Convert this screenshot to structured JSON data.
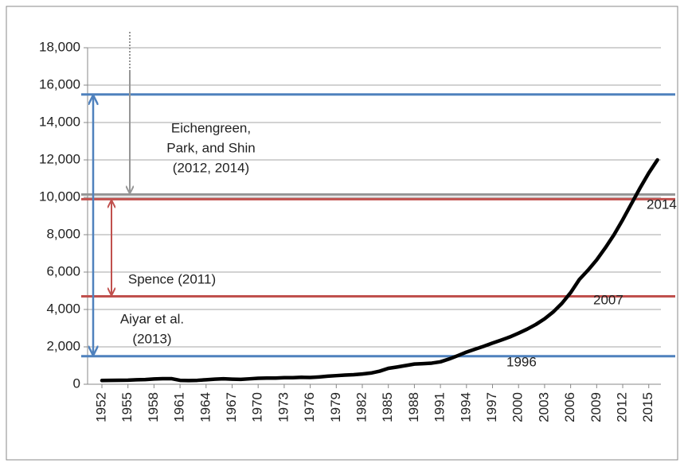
{
  "chart_data": {
    "type": "line",
    "x": [
      1952,
      1953,
      1954,
      1955,
      1956,
      1957,
      1958,
      1959,
      1960,
      1961,
      1962,
      1963,
      1964,
      1965,
      1966,
      1967,
      1968,
      1969,
      1970,
      1971,
      1972,
      1973,
      1974,
      1975,
      1976,
      1977,
      1978,
      1979,
      1980,
      1981,
      1982,
      1983,
      1984,
      1985,
      1986,
      1987,
      1988,
      1989,
      1990,
      1991,
      1992,
      1993,
      1994,
      1995,
      1996,
      1997,
      1998,
      1999,
      2000,
      2001,
      2002,
      2003,
      2004,
      2005,
      2006,
      2007,
      2008,
      2009,
      2010,
      2011,
      2012,
      2013,
      2014,
      2015,
      2016
    ],
    "series": [
      {
        "color": "#000000",
        "values": [
          200,
          210,
          215,
          220,
          240,
          250,
          280,
          300,
          300,
          210,
          195,
          210,
          240,
          270,
          290,
          270,
          260,
          290,
          320,
          330,
          330,
          350,
          350,
          370,
          360,
          390,
          430,
          460,
          490,
          510,
          550,
          600,
          700,
          850,
          920,
          1000,
          1080,
          1100,
          1130,
          1200,
          1350,
          1530,
          1720,
          1880,
          2030,
          2200,
          2360,
          2530,
          2730,
          2950,
          3200,
          3500,
          3870,
          4330,
          4900,
          5600,
          6100,
          6650,
          7300,
          8000,
          8800,
          9650,
          10500,
          11300,
          12000
        ]
      }
    ],
    "xlim": [
      1950.35,
      2016.4
    ],
    "xticks": [
      1952,
      1955,
      1958,
      1961,
      1964,
      1967,
      1970,
      1973,
      1976,
      1979,
      1982,
      1985,
      1988,
      1991,
      1994,
      1997,
      2000,
      2003,
      2006,
      2009,
      2012,
      2015
    ],
    "ylim": [
      0,
      18000
    ],
    "yticks": [
      0,
      {
        "value": 2000,
        "label": "2,000"
      },
      {
        "value": 4000,
        "label": "4,000"
      },
      {
        "value": 6000,
        "label": "6,000"
      },
      {
        "value": 8000,
        "label": "8,000"
      },
      {
        "value": 10000,
        "label": "10,000"
      },
      {
        "value": 12000,
        "label": "12,000"
      },
      {
        "value": 14000,
        "label": "14,000"
      },
      {
        "value": 16000,
        "label": "16,000"
      },
      {
        "value": 18000,
        "label": "18,000"
      }
    ],
    "grid": true,
    "reference_lines": [
      {
        "value": 15500,
        "color": "#4f81bd"
      },
      {
        "value": 1500,
        "color": "#4f81bd"
      },
      {
        "value": 10150,
        "color": "#969696"
      },
      {
        "value": 9900,
        "color": "#c0504d"
      },
      {
        "value": 4700,
        "color": "#c0504d"
      }
    ],
    "annotations": [
      {
        "lines": [
          "Eichengreen,",
          "Park, and Shin",
          "(2012, 2014)"
        ]
      },
      {
        "lines": [
          "Spence (2011)"
        ]
      },
      {
        "lines": [
          "Aiyar et al.",
          "(2013)"
        ]
      },
      {
        "lines": [
          "2014"
        ]
      },
      {
        "lines": [
          "2007"
        ]
      },
      {
        "lines": [
          "1996"
        ]
      }
    ]
  }
}
